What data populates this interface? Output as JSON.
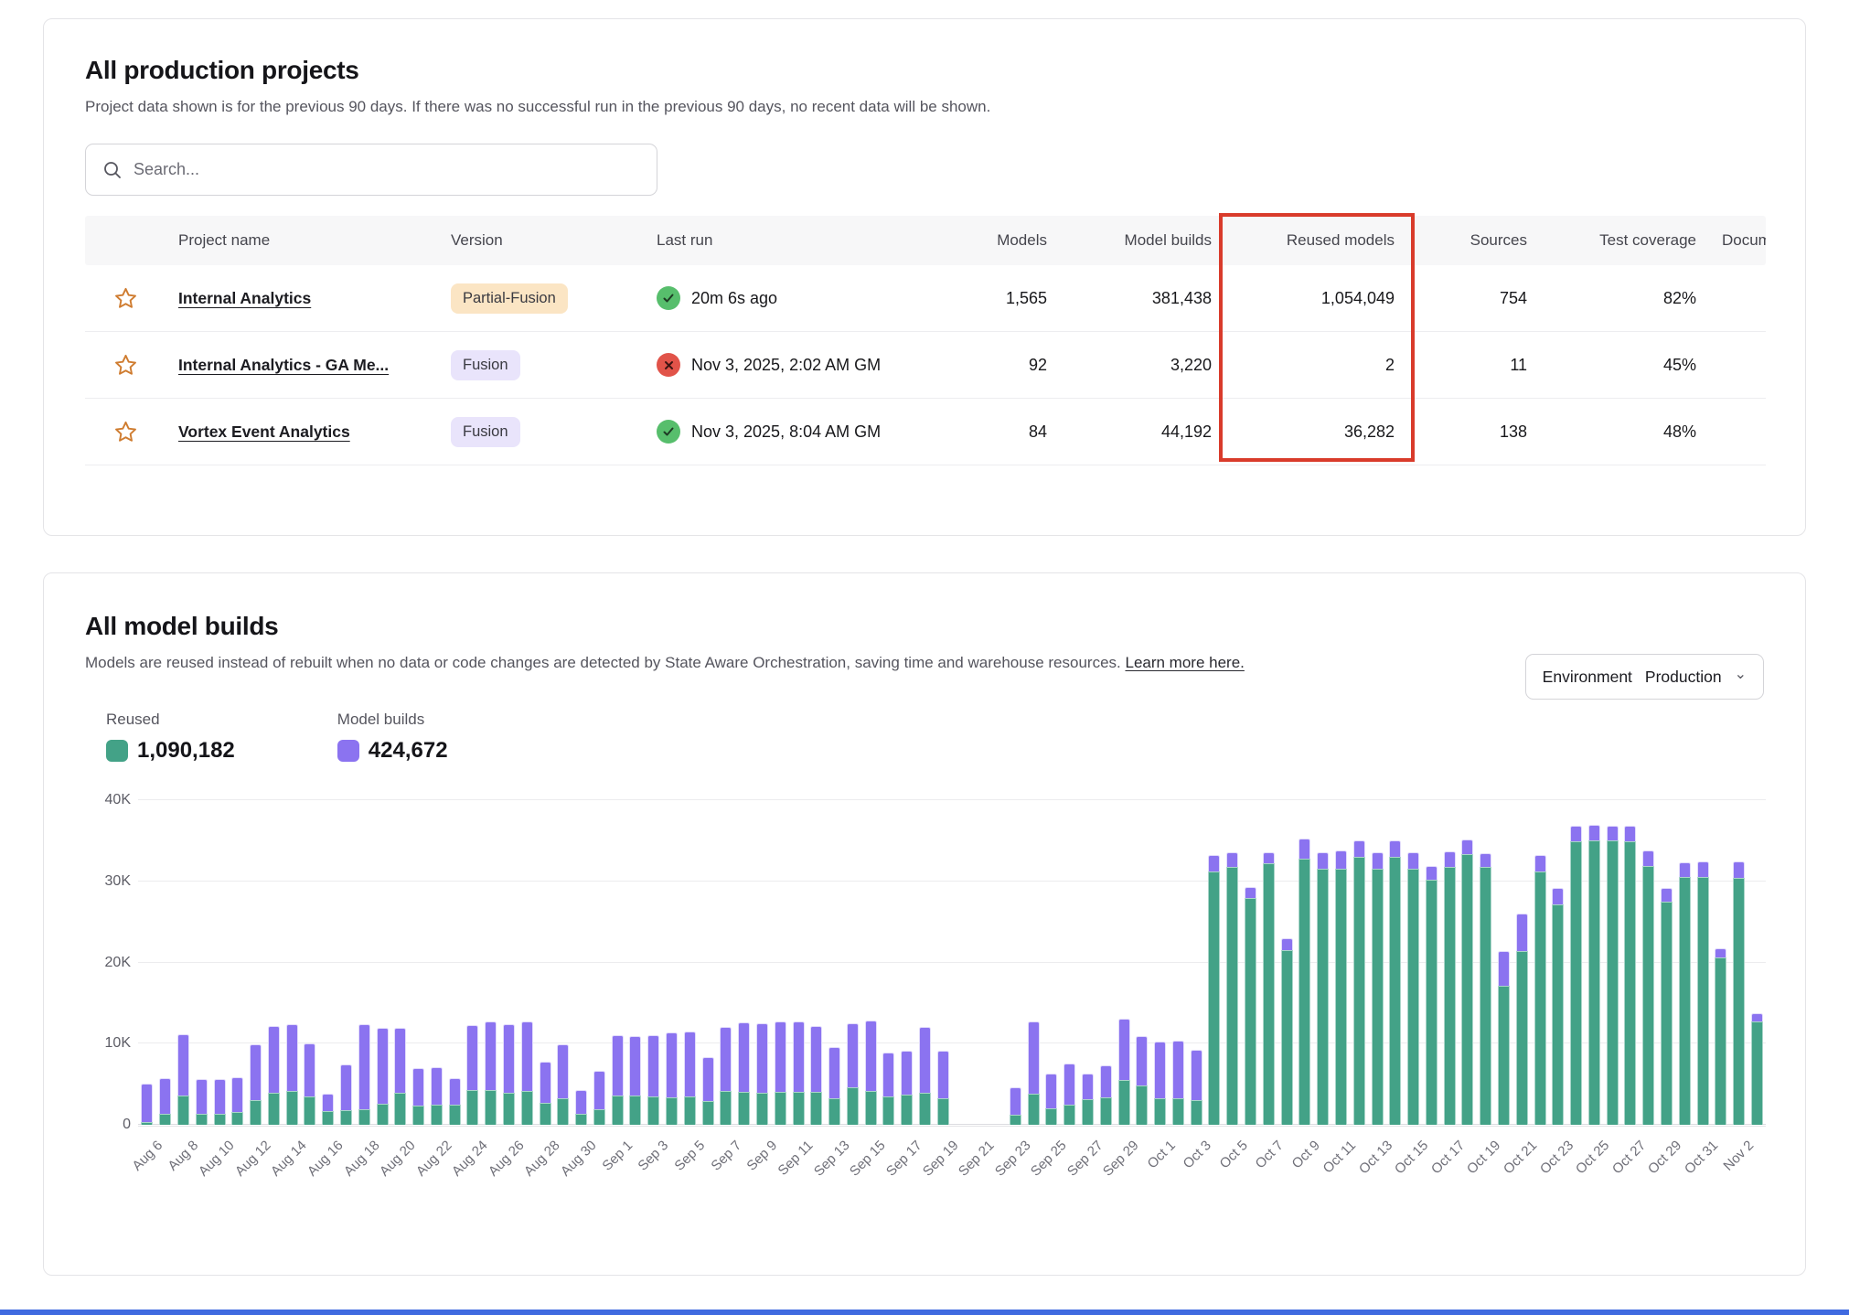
{
  "colors": {
    "reused_green": "#43a287",
    "builds_purple": "#8b73f0",
    "highlight_red": "#d93b2b",
    "success_green": "#57be6c",
    "error_red": "#e15349",
    "bottom_bar_blue": "#3f6ae0"
  },
  "projects_card": {
    "title": "All production projects",
    "description": "Project data shown is for the previous 90 days. If there was no successful run in the previous 90 days, no recent data will be shown.",
    "search_placeholder": "Search...",
    "table": {
      "columns": [
        "Project name",
        "Version",
        "Last run",
        "Models",
        "Model builds",
        "Reused models",
        "Sources",
        "Test coverage",
        "Docum"
      ],
      "rows": [
        {
          "name": "Internal Analytics",
          "version": "Partial-Fusion",
          "status": "success",
          "last_run": "20m 6s ago",
          "models": "1,565",
          "model_builds": "381,438",
          "reused_models": "1,054,049",
          "sources": "754",
          "test_coverage": "82%"
        },
        {
          "name": "Internal Analytics - GA Me...",
          "version": "Fusion",
          "status": "error",
          "last_run": "Nov 3, 2025, 2:02 AM GM",
          "models": "92",
          "model_builds": "3,220",
          "reused_models": "2",
          "sources": "11",
          "test_coverage": "45%"
        },
        {
          "name": "Vortex Event Analytics",
          "version": "Fusion",
          "status": "success",
          "last_run": "Nov 3, 2025, 8:04 AM GM",
          "models": "84",
          "model_builds": "44,192",
          "reused_models": "36,282",
          "sources": "138",
          "test_coverage": "48%"
        }
      ]
    }
  },
  "builds_card": {
    "title": "All model builds",
    "description": "Models are reused instead of rebuilt when no data or code changes are detected by State Aware Orchestration, saving time and warehouse resources.",
    "learn_more": "Learn more here.",
    "environment_label": "Environment",
    "environment_value": "Production",
    "legend": [
      {
        "label": "Reused",
        "value": "1,090,182",
        "color": "#43a287"
      },
      {
        "label": "Model builds",
        "value": "424,672",
        "color": "#8b73f0"
      }
    ]
  },
  "chart_data": {
    "type": "bar",
    "stacked": true,
    "title": "All model builds by day",
    "xlabel": "",
    "ylabel": "",
    "ylim": [
      0,
      40000
    ],
    "yticks": [
      {
        "v": 0,
        "label": "0"
      },
      {
        "v": 10000,
        "label": "10K"
      },
      {
        "v": 20000,
        "label": "20K"
      },
      {
        "v": 30000,
        "label": "30K"
      },
      {
        "v": 40000,
        "label": "40K"
      }
    ],
    "grid": true,
    "legend_position": "top-left",
    "x_tick_every": 2,
    "x": [
      "Aug 6",
      "Aug 7",
      "Aug 8",
      "Aug 9",
      "Aug 10",
      "Aug 11",
      "Aug 12",
      "Aug 13",
      "Aug 14",
      "Aug 15",
      "Aug 16",
      "Aug 17",
      "Aug 18",
      "Aug 19",
      "Aug 20",
      "Aug 21",
      "Aug 22",
      "Aug 23",
      "Aug 24",
      "Aug 25",
      "Aug 26",
      "Aug 27",
      "Aug 28",
      "Aug 29",
      "Aug 30",
      "Aug 31",
      "Sep 1",
      "Sep 2",
      "Sep 3",
      "Sep 4",
      "Sep 5",
      "Sep 6",
      "Sep 7",
      "Sep 8",
      "Sep 9",
      "Sep 10",
      "Sep 11",
      "Sep 12",
      "Sep 13",
      "Sep 14",
      "Sep 15",
      "Sep 16",
      "Sep 17",
      "Sep 18",
      "Sep 19",
      "Sep 20",
      "Sep 21",
      "Sep 22",
      "Sep 23",
      "Sep 24",
      "Sep 25",
      "Sep 26",
      "Sep 27",
      "Sep 28",
      "Sep 29",
      "Sep 30",
      "Oct 1",
      "Oct 2",
      "Oct 3",
      "Oct 4",
      "Oct 5",
      "Oct 6",
      "Oct 7",
      "Oct 8",
      "Oct 9",
      "Oct 10",
      "Oct 11",
      "Oct 12",
      "Oct 13",
      "Oct 14",
      "Oct 15",
      "Oct 16",
      "Oct 17",
      "Oct 18",
      "Oct 19",
      "Oct 20",
      "Oct 21",
      "Oct 22",
      "Oct 23",
      "Oct 24",
      "Oct 25",
      "Oct 26",
      "Oct 27",
      "Oct 28",
      "Oct 29",
      "Oct 30",
      "Oct 31",
      "Nov 1",
      "Nov 2",
      "Nov 3"
    ],
    "series": [
      {
        "name": "Reused",
        "color": "#43a287",
        "values": [
          300,
          1300,
          3600,
          1300,
          1300,
          1600,
          3100,
          4000,
          4200,
          3500,
          1700,
          1800,
          1900,
          2600,
          3900,
          2400,
          2500,
          2500,
          4300,
          4300,
          4000,
          4200,
          2700,
          3300,
          1300,
          1900,
          3600,
          3600,
          3500,
          3400,
          3500,
          2900,
          4200,
          4100,
          4000,
          4100,
          4100,
          4100,
          3300,
          4600,
          4200,
          3500,
          3700,
          4000,
          3300,
          0,
          0,
          0,
          1200,
          3800,
          2000,
          2500,
          3200,
          3400,
          5500,
          4800,
          3300,
          3300,
          3000,
          31200,
          31800,
          27900,
          32200,
          21500,
          32800,
          31500,
          31600,
          33000,
          31600,
          33000,
          31500,
          30200,
          31800,
          33400,
          31800,
          17100,
          21400,
          31200,
          27200,
          34900,
          35000,
          35000,
          34900,
          31900,
          27500,
          30500,
          30500,
          20600,
          30400,
          12700
        ]
      },
      {
        "name": "Model builds",
        "color": "#8b73f0",
        "values": [
          4800,
          4500,
          7600,
          4300,
          4300,
          4300,
          6800,
          8200,
          8200,
          6500,
          2100,
          5600,
          10500,
          9300,
          8100,
          4600,
          4600,
          3300,
          8000,
          8400,
          8400,
          8500,
          5100,
          6600,
          3000,
          4800,
          7500,
          7300,
          7600,
          8000,
          8000,
          5400,
          7900,
          8500,
          8500,
          8600,
          8600,
          8100,
          6300,
          7900,
          8700,
          5400,
          5400,
          8100,
          5800,
          0,
          0,
          0,
          3400,
          8900,
          4300,
          5000,
          3100,
          3900,
          7600,
          6100,
          7000,
          7100,
          6200,
          2000,
          1800,
          1400,
          1400,
          1500,
          2500,
          2100,
          2200,
          2000,
          2000,
          2000,
          2100,
          1700,
          1900,
          1800,
          1700,
          4300,
          4600,
          2000,
          2000,
          1900,
          2000,
          1900,
          1900,
          1900,
          1700,
          1800,
          1900,
          1100,
          2000,
          1100
        ]
      }
    ]
  }
}
